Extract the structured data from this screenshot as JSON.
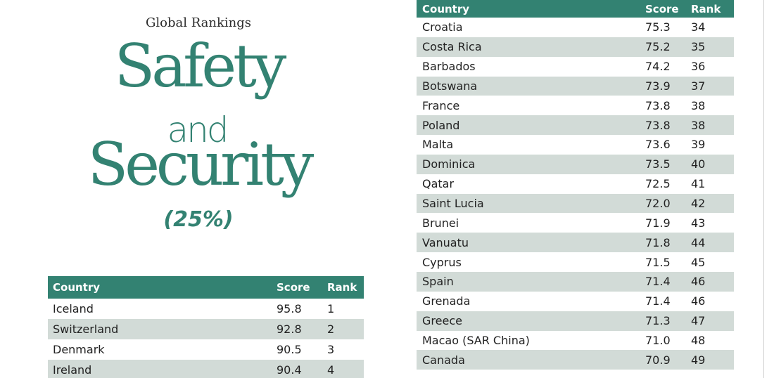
{
  "heading": {
    "kicker": "Global Rankings",
    "word1": "Safety",
    "word2": "and",
    "word3": "Security",
    "weight": "(25%)"
  },
  "table_left": {
    "headers": {
      "country": "Country",
      "score": "Score",
      "rank": "Rank"
    },
    "rows": [
      {
        "country": "Iceland",
        "score": "95.8",
        "rank": "1"
      },
      {
        "country": "Switzerland",
        "score": "92.8",
        "rank": "2"
      },
      {
        "country": "Denmark",
        "score": "90.5",
        "rank": "3"
      },
      {
        "country": "Ireland",
        "score": "90.4",
        "rank": "4"
      }
    ]
  },
  "table_right": {
    "headers": {
      "country": "Country",
      "score": "Score",
      "rank": "Rank"
    },
    "rows": [
      {
        "country": "Croatia",
        "score": "75.3",
        "rank": "34"
      },
      {
        "country": "Costa Rica",
        "score": "75.2",
        "rank": "35"
      },
      {
        "country": "Barbados",
        "score": "74.2",
        "rank": "36"
      },
      {
        "country": "Botswana",
        "score": "73.9",
        "rank": "37"
      },
      {
        "country": "France",
        "score": "73.8",
        "rank": "38"
      },
      {
        "country": "Poland",
        "score": "73.8",
        "rank": "38"
      },
      {
        "country": "Malta",
        "score": "73.6",
        "rank": "39"
      },
      {
        "country": "Dominica",
        "score": "73.5",
        "rank": "40"
      },
      {
        "country": "Qatar",
        "score": "72.5",
        "rank": "41"
      },
      {
        "country": "Saint Lucia",
        "score": "72.0",
        "rank": "42"
      },
      {
        "country": "Brunei",
        "score": "71.9",
        "rank": "43"
      },
      {
        "country": "Vanuatu",
        "score": "71.8",
        "rank": "44"
      },
      {
        "country": "Cyprus",
        "score": "71.5",
        "rank": "45"
      },
      {
        "country": "Spain",
        "score": "71.4",
        "rank": "46"
      },
      {
        "country": "Grenada",
        "score": "71.4",
        "rank": "46"
      },
      {
        "country": "Greece",
        "score": "71.3",
        "rank": "47"
      },
      {
        "country": "Macao (SAR China)",
        "score": "71.0",
        "rank": "48"
      },
      {
        "country": "Canada",
        "score": "70.9",
        "rank": "49"
      }
    ]
  },
  "colors": {
    "accent": "#338272",
    "row_alt": "#d2dbd7"
  }
}
